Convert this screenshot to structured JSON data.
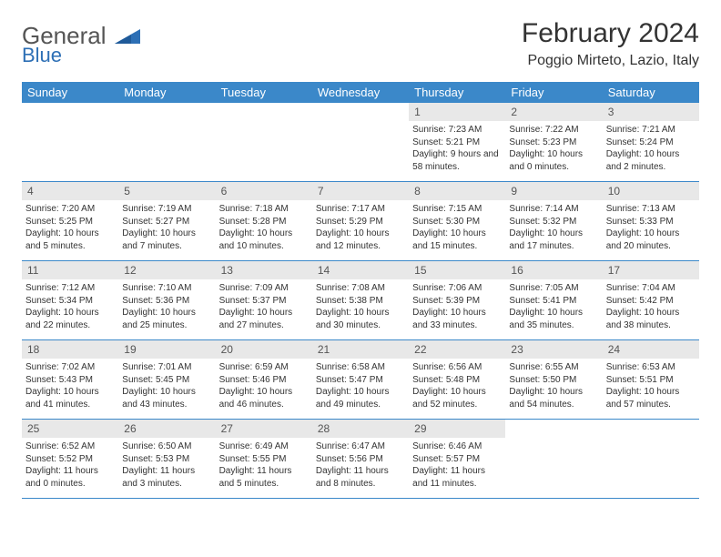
{
  "logo": {
    "word1": "General",
    "word2": "Blue"
  },
  "title": "February 2024",
  "location": "Poggio Mirteto, Lazio, Italy",
  "colors": {
    "header_bg": "#3b88c9",
    "header_text": "#ffffff",
    "daynum_bg": "#e8e8e8",
    "border": "#3b88c9",
    "logo_gray": "#555555",
    "logo_blue": "#2d6fb5"
  },
  "weekdays": [
    "Sunday",
    "Monday",
    "Tuesday",
    "Wednesday",
    "Thursday",
    "Friday",
    "Saturday"
  ],
  "weeks": [
    [
      null,
      null,
      null,
      null,
      {
        "n": "1",
        "sunrise": "7:23 AM",
        "sunset": "5:21 PM",
        "dl_h": 9,
        "dl_m": 58
      },
      {
        "n": "2",
        "sunrise": "7:22 AM",
        "sunset": "5:23 PM",
        "dl_h": 10,
        "dl_m": 0
      },
      {
        "n": "3",
        "sunrise": "7:21 AM",
        "sunset": "5:24 PM",
        "dl_h": 10,
        "dl_m": 2
      }
    ],
    [
      {
        "n": "4",
        "sunrise": "7:20 AM",
        "sunset": "5:25 PM",
        "dl_h": 10,
        "dl_m": 5
      },
      {
        "n": "5",
        "sunrise": "7:19 AM",
        "sunset": "5:27 PM",
        "dl_h": 10,
        "dl_m": 7
      },
      {
        "n": "6",
        "sunrise": "7:18 AM",
        "sunset": "5:28 PM",
        "dl_h": 10,
        "dl_m": 10
      },
      {
        "n": "7",
        "sunrise": "7:17 AM",
        "sunset": "5:29 PM",
        "dl_h": 10,
        "dl_m": 12
      },
      {
        "n": "8",
        "sunrise": "7:15 AM",
        "sunset": "5:30 PM",
        "dl_h": 10,
        "dl_m": 15
      },
      {
        "n": "9",
        "sunrise": "7:14 AM",
        "sunset": "5:32 PM",
        "dl_h": 10,
        "dl_m": 17
      },
      {
        "n": "10",
        "sunrise": "7:13 AM",
        "sunset": "5:33 PM",
        "dl_h": 10,
        "dl_m": 20
      }
    ],
    [
      {
        "n": "11",
        "sunrise": "7:12 AM",
        "sunset": "5:34 PM",
        "dl_h": 10,
        "dl_m": 22
      },
      {
        "n": "12",
        "sunrise": "7:10 AM",
        "sunset": "5:36 PM",
        "dl_h": 10,
        "dl_m": 25
      },
      {
        "n": "13",
        "sunrise": "7:09 AM",
        "sunset": "5:37 PM",
        "dl_h": 10,
        "dl_m": 27
      },
      {
        "n": "14",
        "sunrise": "7:08 AM",
        "sunset": "5:38 PM",
        "dl_h": 10,
        "dl_m": 30
      },
      {
        "n": "15",
        "sunrise": "7:06 AM",
        "sunset": "5:39 PM",
        "dl_h": 10,
        "dl_m": 33
      },
      {
        "n": "16",
        "sunrise": "7:05 AM",
        "sunset": "5:41 PM",
        "dl_h": 10,
        "dl_m": 35
      },
      {
        "n": "17",
        "sunrise": "7:04 AM",
        "sunset": "5:42 PM",
        "dl_h": 10,
        "dl_m": 38
      }
    ],
    [
      {
        "n": "18",
        "sunrise": "7:02 AM",
        "sunset": "5:43 PM",
        "dl_h": 10,
        "dl_m": 41
      },
      {
        "n": "19",
        "sunrise": "7:01 AM",
        "sunset": "5:45 PM",
        "dl_h": 10,
        "dl_m": 43
      },
      {
        "n": "20",
        "sunrise": "6:59 AM",
        "sunset": "5:46 PM",
        "dl_h": 10,
        "dl_m": 46
      },
      {
        "n": "21",
        "sunrise": "6:58 AM",
        "sunset": "5:47 PM",
        "dl_h": 10,
        "dl_m": 49
      },
      {
        "n": "22",
        "sunrise": "6:56 AM",
        "sunset": "5:48 PM",
        "dl_h": 10,
        "dl_m": 52
      },
      {
        "n": "23",
        "sunrise": "6:55 AM",
        "sunset": "5:50 PM",
        "dl_h": 10,
        "dl_m": 54
      },
      {
        "n": "24",
        "sunrise": "6:53 AM",
        "sunset": "5:51 PM",
        "dl_h": 10,
        "dl_m": 57
      }
    ],
    [
      {
        "n": "25",
        "sunrise": "6:52 AM",
        "sunset": "5:52 PM",
        "dl_h": 11,
        "dl_m": 0
      },
      {
        "n": "26",
        "sunrise": "6:50 AM",
        "sunset": "5:53 PM",
        "dl_h": 11,
        "dl_m": 3
      },
      {
        "n": "27",
        "sunrise": "6:49 AM",
        "sunset": "5:55 PM",
        "dl_h": 11,
        "dl_m": 5
      },
      {
        "n": "28",
        "sunrise": "6:47 AM",
        "sunset": "5:56 PM",
        "dl_h": 11,
        "dl_m": 8
      },
      {
        "n": "29",
        "sunrise": "6:46 AM",
        "sunset": "5:57 PM",
        "dl_h": 11,
        "dl_m": 11
      },
      null,
      null
    ]
  ],
  "labels": {
    "sunrise": "Sunrise:",
    "sunset": "Sunset:",
    "daylight_prefix": "Daylight:",
    "hours_word": "hours",
    "and_word": "and",
    "minutes_word": "minutes."
  }
}
